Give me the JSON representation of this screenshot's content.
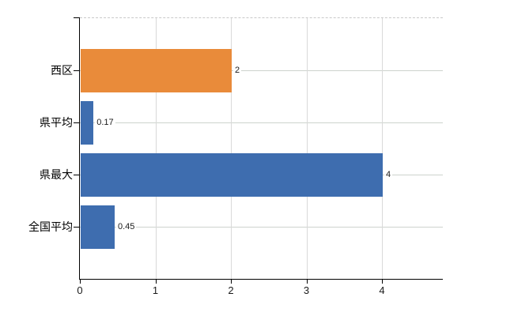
{
  "chart_data": {
    "type": "bar",
    "orientation": "horizontal",
    "title": "",
    "xlabel": "",
    "ylabel": "",
    "categories": [
      "西区",
      "県平均",
      "県最大",
      "全国平均"
    ],
    "values": [
      2,
      0.17,
      4,
      0.45
    ],
    "value_labels": [
      "2",
      "0.17",
      "4",
      "0.45"
    ],
    "bar_colors": [
      "#E98B3A",
      "#3E6DAF",
      "#3E6DAF",
      "#3E6DAF"
    ],
    "x_ticks": [
      {
        "label": "0",
        "value": 0
      },
      {
        "label": "1",
        "value": 1
      },
      {
        "label": "2",
        "value": 2
      },
      {
        "label": "3",
        "value": 3
      },
      {
        "label": "4",
        "value": 4
      }
    ],
    "xlim": [
      0,
      4.8
    ],
    "grid": true,
    "legend": false,
    "colors": {
      "accent_orange": "#E98B3A",
      "accent_blue": "#3E6DAF",
      "grid_horizontal": "#cdd3cd",
      "grid_vertical": "#d9d9d9",
      "plot_top_border": "#c9c9c9",
      "axis": "#000000",
      "background": "#ffffff",
      "text": "#000000"
    }
  }
}
